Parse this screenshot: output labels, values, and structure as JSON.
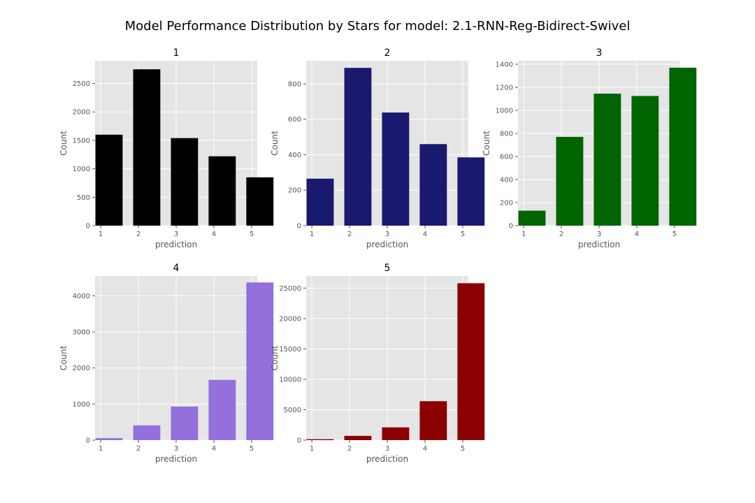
{
  "chart_data": {
    "type": "bar",
    "title": "Model Performance Distribution by Stars for model: 2.1-RNN-Reg-Bidirect-Swivel",
    "panels": [
      {
        "title": "1",
        "xlabel": "prediction",
        "ylabel": "Count",
        "color": "#000000",
        "categories": [
          1,
          2,
          3,
          4,
          5
        ],
        "values": [
          1600,
          2750,
          1540,
          1220,
          850
        ],
        "xlim": [
          0.85,
          5.15
        ],
        "ylim": [
          0,
          2900
        ],
        "xticks": [
          1,
          2,
          3,
          4,
          5
        ],
        "yticks": [
          0,
          500,
          1000,
          1500,
          2000,
          2500
        ]
      },
      {
        "title": "2",
        "xlabel": "prediction",
        "ylabel": "Count",
        "color": "#191970",
        "categories": [
          1,
          2,
          3,
          4,
          5
        ],
        "values": [
          265,
          890,
          638,
          460,
          385
        ],
        "xlim": [
          0.85,
          5.15
        ],
        "ylim": [
          0,
          930
        ],
        "xticks": [
          1,
          2,
          3,
          4,
          5
        ],
        "yticks": [
          0,
          200,
          400,
          600,
          800
        ]
      },
      {
        "title": "3",
        "xlabel": "prediction",
        "ylabel": "Count",
        "color": "#006400",
        "categories": [
          1,
          2,
          3,
          4,
          5
        ],
        "values": [
          130,
          770,
          1145,
          1125,
          1370
        ],
        "xlim": [
          0.85,
          5.15
        ],
        "ylim": [
          0,
          1430
        ],
        "xticks": [
          1,
          2,
          3,
          4,
          5
        ],
        "yticks": [
          0,
          200,
          400,
          600,
          800,
          1000,
          1200,
          1400
        ]
      },
      {
        "title": "4",
        "xlabel": "prediction",
        "ylabel": "Count",
        "color": "#9370db",
        "categories": [
          1,
          2,
          3,
          4,
          5
        ],
        "values": [
          55,
          410,
          930,
          1670,
          4370
        ],
        "xlim": [
          0.85,
          5.15
        ],
        "ylim": [
          0,
          4550
        ],
        "xticks": [
          1,
          2,
          3,
          4,
          5
        ],
        "yticks": [
          0,
          1000,
          2000,
          3000,
          4000
        ]
      },
      {
        "title": "5",
        "xlabel": "prediction",
        "ylabel": "Count",
        "color": "#8b0000",
        "categories": [
          1,
          2,
          3,
          4,
          5
        ],
        "values": [
          150,
          700,
          2100,
          6400,
          25800
        ],
        "xlim": [
          0.85,
          5.15
        ],
        "ylim": [
          0,
          27000
        ],
        "xticks": [
          1,
          2,
          3,
          4,
          5
        ],
        "yticks": [
          0,
          5000,
          10000,
          15000,
          20000,
          25000
        ]
      }
    ],
    "grid": true
  }
}
